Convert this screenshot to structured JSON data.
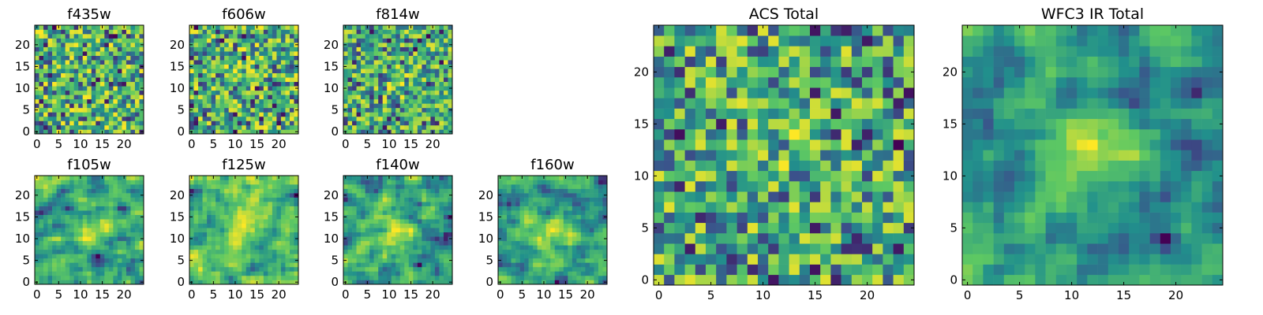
{
  "figure": {
    "colormap": "viridis",
    "grid": false,
    "colors": [
      "#440154",
      "#3b528b",
      "#21908c",
      "#5dc863",
      "#fde725"
    ]
  },
  "chart_data": [
    {
      "type": "heatmap",
      "title": "f435w",
      "rows": 25,
      "cols": 25,
      "xlim": [
        0,
        24
      ],
      "ylim": [
        0,
        24
      ],
      "xticks": [
        "0",
        "5",
        "10",
        "15",
        "20"
      ],
      "yticks": [
        "0",
        "5",
        "10",
        "15",
        "20"
      ]
    },
    {
      "type": "heatmap",
      "title": "f606w",
      "rows": 25,
      "cols": 25,
      "xlim": [
        0,
        24
      ],
      "ylim": [
        0,
        24
      ],
      "xticks": [
        "0",
        "5",
        "10",
        "15",
        "20"
      ],
      "yticks": [
        "0",
        "5",
        "10",
        "15",
        "20"
      ]
    },
    {
      "type": "heatmap",
      "title": "f814w",
      "rows": 25,
      "cols": 25,
      "xlim": [
        0,
        24
      ],
      "ylim": [
        0,
        24
      ],
      "xticks": [
        "0",
        "5",
        "10",
        "15",
        "20"
      ],
      "yticks": [
        "0",
        "5",
        "10",
        "15",
        "20"
      ]
    },
    {
      "type": "heatmap",
      "title": "f105w",
      "rows": 25,
      "cols": 25,
      "xlim": [
        0,
        24
      ],
      "ylim": [
        0,
        24
      ],
      "xticks": [
        "0",
        "5",
        "10",
        "15",
        "20"
      ],
      "yticks": [
        "0",
        "5",
        "10",
        "15",
        "20"
      ]
    },
    {
      "type": "heatmap",
      "title": "f125w",
      "rows": 25,
      "cols": 25,
      "xlim": [
        0,
        24
      ],
      "ylim": [
        0,
        24
      ],
      "xticks": [
        "0",
        "5",
        "10",
        "15",
        "20"
      ],
      "yticks": [
        "0",
        "5",
        "10",
        "15",
        "20"
      ]
    },
    {
      "type": "heatmap",
      "title": "f140w",
      "rows": 25,
      "cols": 25,
      "xlim": [
        0,
        24
      ],
      "ylim": [
        0,
        24
      ],
      "xticks": [
        "0",
        "5",
        "10",
        "15",
        "20"
      ],
      "yticks": [
        "0",
        "5",
        "10",
        "15",
        "20"
      ]
    },
    {
      "type": "heatmap",
      "title": "f160w",
      "rows": 25,
      "cols": 25,
      "xlim": [
        0,
        24
      ],
      "ylim": [
        0,
        24
      ],
      "xticks": [
        "0",
        "5",
        "10",
        "15",
        "20"
      ],
      "yticks": [
        "0",
        "5",
        "10",
        "15",
        "20"
      ]
    },
    {
      "type": "heatmap",
      "title": "ACS Total",
      "rows": 25,
      "cols": 25,
      "xlim": [
        0,
        24
      ],
      "ylim": [
        0,
        24
      ],
      "xticks": [
        "0",
        "5",
        "10",
        "15",
        "20"
      ],
      "yticks": [
        "0",
        "5",
        "10",
        "15",
        "20"
      ]
    },
    {
      "type": "heatmap",
      "title": "WFC3 IR Total",
      "rows": 25,
      "cols": 25,
      "xlim": [
        0,
        24
      ],
      "ylim": [
        0,
        24
      ],
      "xticks": [
        "0",
        "5",
        "10",
        "15",
        "20"
      ],
      "yticks": [
        "0",
        "5",
        "10",
        "15",
        "20"
      ]
    }
  ]
}
